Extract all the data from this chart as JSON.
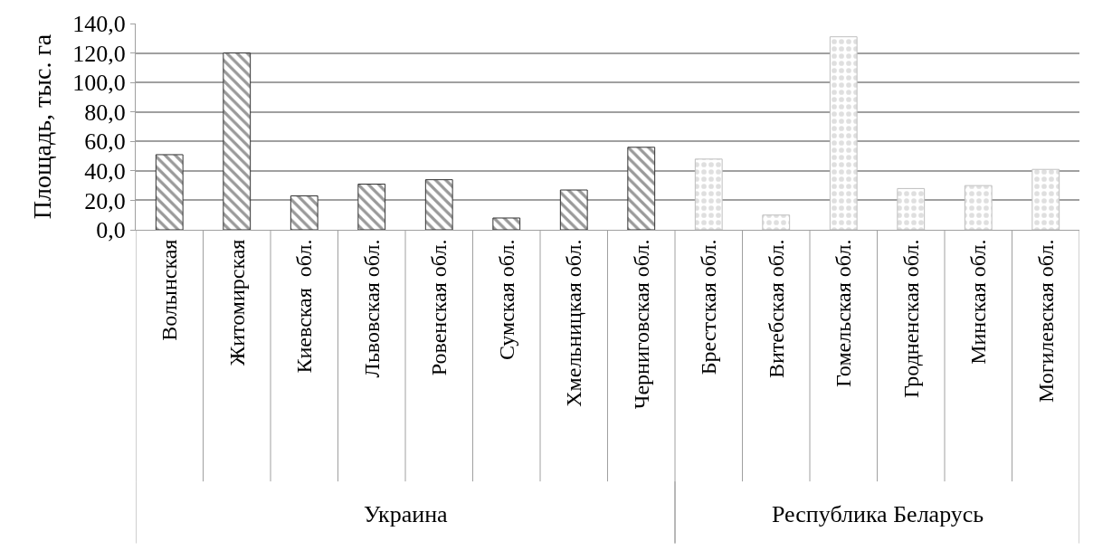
{
  "chart_data": {
    "type": "bar",
    "ylabel": "Площадь, тыс. га",
    "categories": [
      "Волынская",
      "Житомирская",
      "Киевская  обл.",
      "Львовская обл.",
      "Ровенская обл.",
      "Сумская обл.",
      "Хмельницкая обл.",
      "Черниговская обл.",
      "Брестская обл.",
      "Витебская обл.",
      "Гомельская обл.",
      "Гродненская обл.",
      "Минская обл.",
      "Могилевская обл."
    ],
    "series": [
      {
        "color": "#333333",
        "values": [
          51,
          120,
          23,
          31,
          34,
          8,
          27,
          56,
          null,
          null,
          null,
          null,
          null,
          null
        ]
      },
      {
        "color": "#bfbfbf",
        "values": [
          null,
          null,
          null,
          null,
          null,
          null,
          null,
          null,
          48,
          10,
          131,
          28,
          30,
          41
        ]
      }
    ],
    "annotations": [
      "Украина",
      "Республика Беларусь"
    ],
    "ylim": [
      0,
      140
    ],
    "yticks": [
      {
        "value": 0,
        "label": "0,0"
      },
      {
        "value": 20,
        "label": "20,0"
      },
      {
        "value": 40,
        "label": "40,0"
      },
      {
        "value": 60,
        "label": "60,0"
      },
      {
        "value": 80,
        "label": "80,0"
      },
      {
        "value": 100,
        "label": "100,0"
      },
      {
        "value": 120,
        "label": "120,0"
      },
      {
        "value": 140,
        "label": "140,0"
      }
    ],
    "grid": "y"
  }
}
